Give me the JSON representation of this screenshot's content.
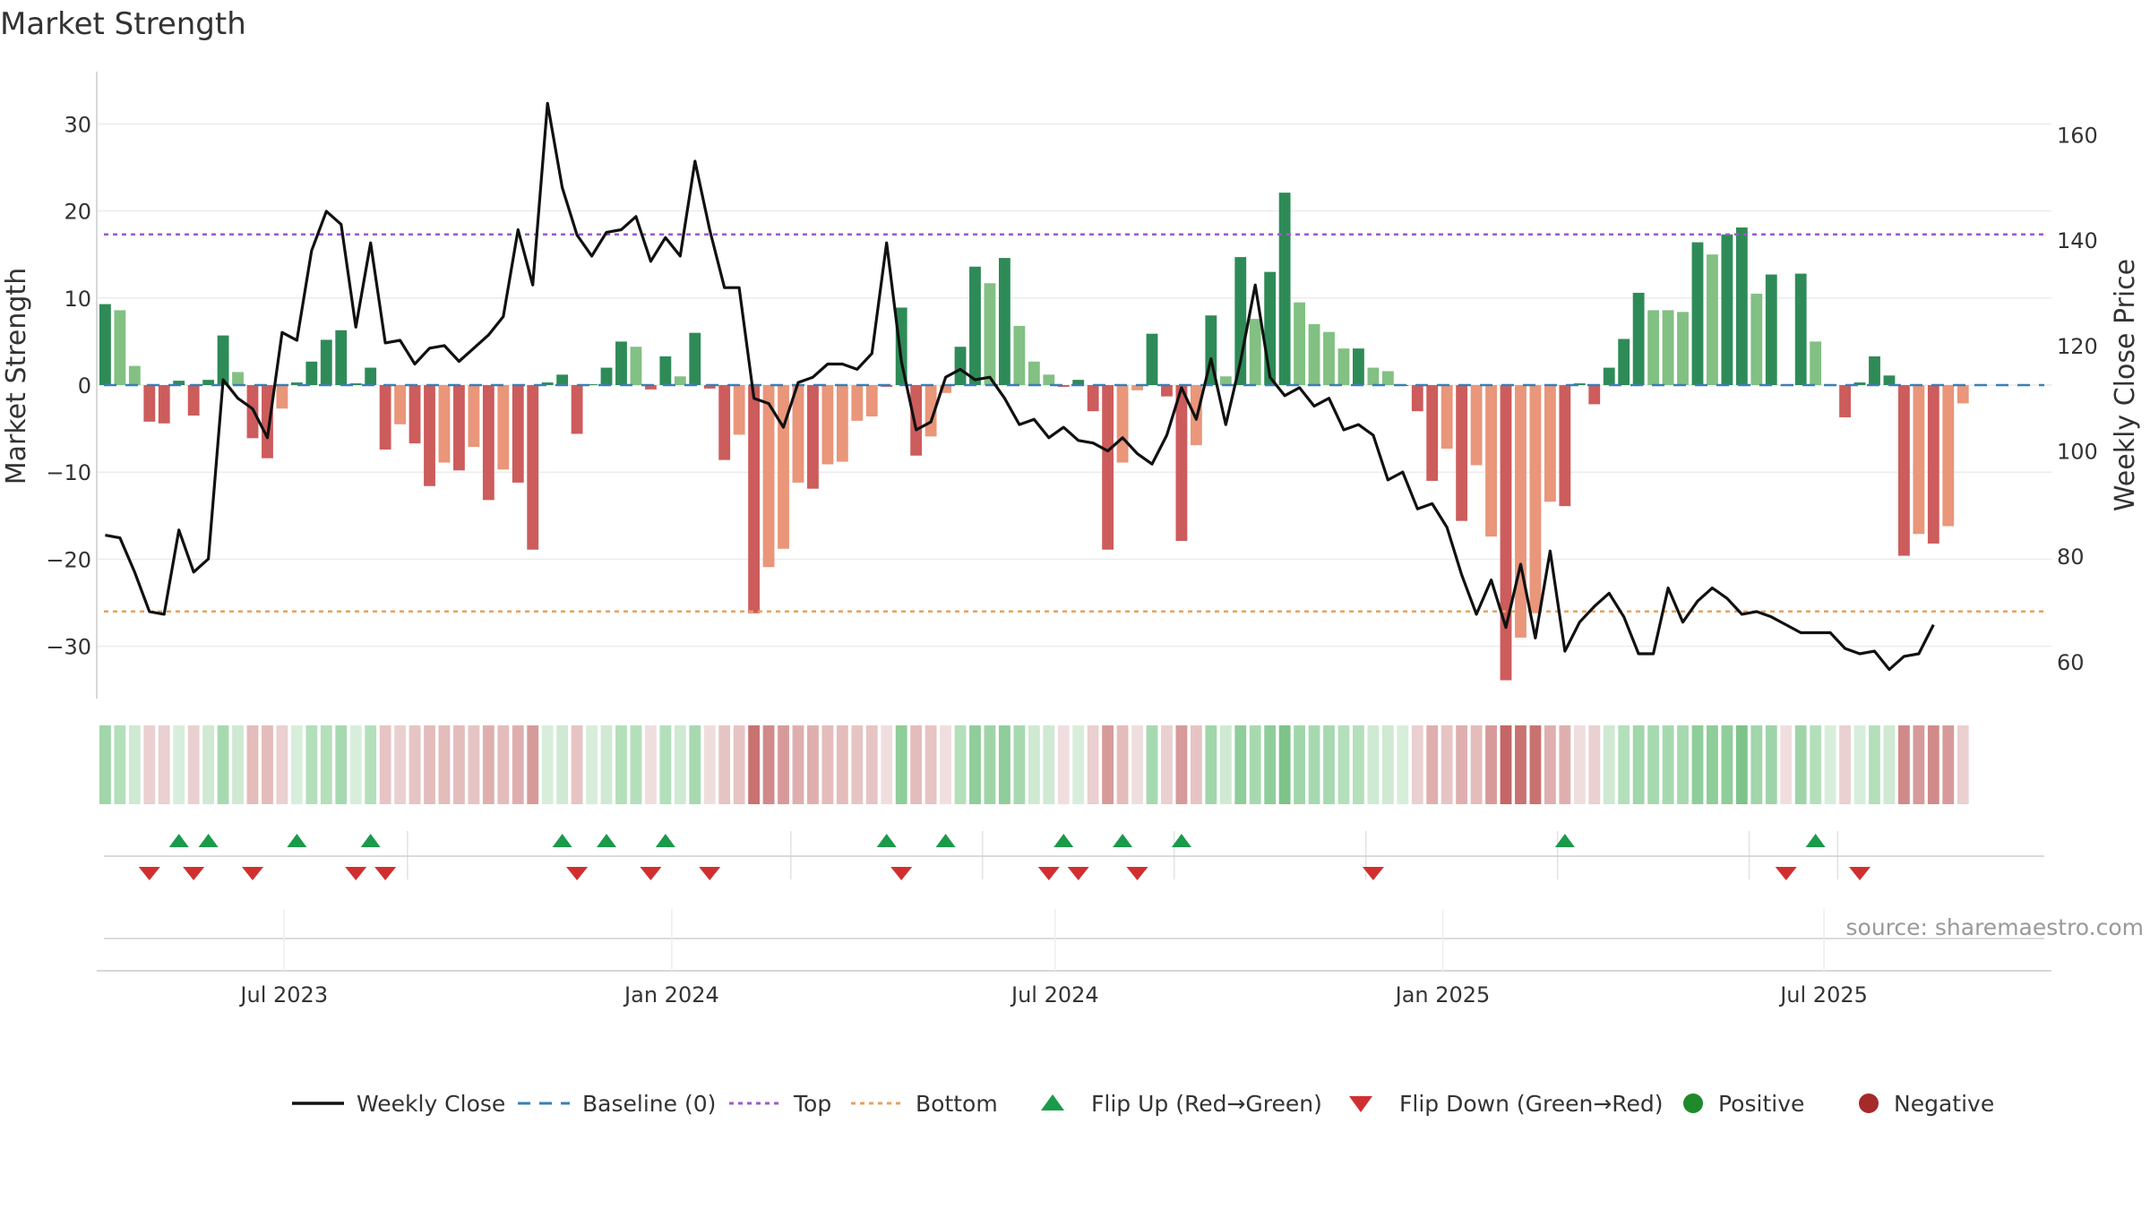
{
  "chart_data": {
    "type": "bar",
    "title": "Market Strength",
    "ylabel": "Market Strength",
    "y2label": "Weekly Close Price",
    "source": "source: sharemaestro.com",
    "ylim": [
      -36,
      36
    ],
    "y2lim": [
      53,
      172
    ],
    "yticks": [
      30,
      20,
      10,
      0,
      -10,
      -20,
      -30
    ],
    "y2ticks": [
      160,
      140,
      120,
      100,
      80,
      60
    ],
    "top_level": 17.3,
    "bottom_level": -26,
    "x_start": "2023-04-03",
    "x_end": "2025-10-17",
    "xticks": [
      {
        "label": "Jul 2023",
        "date": "2023-07-01"
      },
      {
        "label": "Jan 2024",
        "date": "2024-01-01"
      },
      {
        "label": "Jul 2024",
        "date": "2024-07-01"
      },
      {
        "label": "Jan 2025",
        "date": "2025-01-01"
      },
      {
        "label": "Jul 2025",
        "date": "2025-07-01"
      }
    ],
    "week_start": "2023-04-07",
    "strength": [
      9.3,
      8.6,
      2.2,
      -4.2,
      -4.4,
      0.5,
      -3.5,
      0.6,
      5.7,
      1.5,
      -6.1,
      -8.4,
      -2.7,
      0.3,
      2.7,
      5.2,
      6.3,
      0.2,
      2,
      -7.4,
      -4.5,
      -6.7,
      -11.6,
      -8.9,
      -9.8,
      -7.1,
      -13.2,
      -9.7,
      -11.2,
      -18.9,
      0.3,
      1.2,
      -5.6,
      0.1,
      2,
      5,
      4.4,
      -0.5,
      3.3,
      1,
      6,
      -0.4,
      -8.6,
      -5.7,
      -26.2,
      -20.9,
      -18.8,
      -11.2,
      -11.9,
      -9.1,
      -8.8,
      -4.1,
      -3.6,
      -0.2,
      8.9,
      -8.1,
      -5.9,
      -0.9,
      4.4,
      13.6,
      11.7,
      14.6,
      6.8,
      2.7,
      1.2,
      -0.2,
      0.6,
      -3,
      -18.9,
      -8.9,
      -0.6,
      5.9,
      -1.3,
      -17.9,
      -6.9,
      8,
      1,
      14.7,
      7.6,
      13,
      22.1,
      9.5,
      7,
      6.1,
      4.2,
      4.2,
      2,
      1.6,
      0,
      -3,
      -11,
      -7.3,
      -15.6,
      -9.2,
      -17.4,
      -33.9,
      -29,
      -26.2,
      -13.4,
      -13.9,
      0.2,
      -2.2,
      2,
      5.3,
      10.6,
      8.6,
      8.6,
      8.4,
      16.4,
      15,
      17.3,
      18.1,
      10.5,
      12.7,
      -0.1,
      12.8,
      5,
      0,
      -3.7,
      0.3,
      3.3,
      1.1,
      -19.6,
      -17.1,
      -18.2,
      -16.2,
      -2.1
    ],
    "strength_tone": [
      "d",
      "l",
      "l",
      "d",
      "d",
      "d",
      "d",
      "d",
      "d",
      "l",
      "d",
      "d",
      "l",
      "d",
      "d",
      "d",
      "d",
      "d",
      "d",
      "d",
      "l",
      "d",
      "d",
      "l",
      "d",
      "l",
      "d",
      "l",
      "d",
      "d",
      "d",
      "d",
      "d",
      "d",
      "d",
      "d",
      "l",
      "d",
      "d",
      "l",
      "d",
      "d",
      "d",
      "l",
      "d",
      "l",
      "l",
      "l",
      "d",
      "l",
      "l",
      "l",
      "l",
      "d",
      "d",
      "d",
      "l",
      "l",
      "d",
      "d",
      "l",
      "d",
      "l",
      "l",
      "l",
      "d",
      "d",
      "d",
      "d",
      "l",
      "l",
      "d",
      "d",
      "d",
      "l",
      "d",
      "l",
      "d",
      "l",
      "d",
      "d",
      "l",
      "l",
      "l",
      "l",
      "d",
      "l",
      "l",
      "d",
      "d",
      "d",
      "l",
      "d",
      "l",
      "l",
      "d",
      "l",
      "l",
      "l",
      "d",
      "d",
      "d",
      "d",
      "d",
      "d",
      "l",
      "l",
      "l",
      "d",
      "l",
      "d",
      "d",
      "l",
      "d",
      "d",
      "d",
      "l",
      "d",
      "d",
      "d",
      "d",
      "d",
      "d",
      "l",
      "d",
      "l",
      "l"
    ],
    "close": [
      84,
      83.5,
      77,
      69.5,
      69,
      85,
      77,
      79.5,
      113.5,
      110,
      108,
      102.5,
      122.5,
      121,
      138,
      145.5,
      143,
      123.5,
      139.5,
      120.5,
      121,
      116.5,
      119.5,
      120,
      117,
      119.5,
      122,
      125.5,
      142,
      131.5,
      166,
      150,
      141,
      137,
      141.5,
      142,
      144.5,
      136,
      140.5,
      137,
      155,
      142,
      131,
      131,
      110,
      109,
      104.5,
      113,
      114,
      116.5,
      116.5,
      115.5,
      118.5,
      139.5,
      117,
      104,
      105.5,
      114,
      115.5,
      113.5,
      114,
      110,
      105,
      106,
      102.5,
      104.5,
      102,
      101.5,
      100,
      102.5,
      99.5,
      97.5,
      103,
      112,
      106,
      117.5,
      105,
      117,
      131.5,
      114,
      110.5,
      112,
      108.5,
      110,
      104,
      105,
      103,
      94.5,
      96,
      89,
      90,
      85.5,
      76.5,
      69,
      75.5,
      66.5,
      78.5,
      64.5,
      81,
      62,
      67.5,
      70.5,
      73,
      68.5,
      61.5,
      61.5,
      74,
      67.5,
      71.5,
      74,
      72,
      69,
      69.5,
      68.5,
      67,
      65.5,
      65.5,
      65.5,
      62.5,
      61.5,
      62,
      58.5,
      61,
      61.5,
      67
    ]
  },
  "heat_strip": {
    "colors": [
      "#a0d6aa",
      "#b4dfbb",
      "#cfe9d3",
      "#ead0d0",
      "#ead0d0",
      "#d7eedb",
      "#ead0d0",
      "#cfe9d3",
      "#a7d9b0",
      "#cfe9d3",
      "#e4bcbc",
      "#e4bcbc",
      "#ead0d0",
      "#d7eedb",
      "#b4dfbb",
      "#b4dfbb",
      "#a7d9b0",
      "#d7eedb",
      "#b4dfbb",
      "#e6c4c4",
      "#ead0d0",
      "#e6c4c4",
      "#e4bcbc",
      "#e4bcbc",
      "#e4bcbc",
      "#e6c4c4",
      "#dfafaf",
      "#e4bcbc",
      "#dfafaf",
      "#d79a9a",
      "#d7eedb",
      "#cfe9d3",
      "#e6c4c4",
      "#d7eedb",
      "#cfe9d3",
      "#b4dfbb",
      "#b4dfbb",
      "#f0dede",
      "#b4dfbb",
      "#cfe9d3",
      "#a7d9b0",
      "#f0dede",
      "#e6c4c4",
      "#e6c4c4",
      "#c97272",
      "#d18a8a",
      "#d79a9a",
      "#dfafaf",
      "#dfafaf",
      "#e4bcbc",
      "#e4bcbc",
      "#e6c4c4",
      "#e6c4c4",
      "#f0dede",
      "#8fcd9a",
      "#e4bcbc",
      "#e6c4c4",
      "#f0dede",
      "#b4dfbb",
      "#8fcd9a",
      "#9fd4a9",
      "#8fcd9a",
      "#a7d9b0",
      "#cfe9d3",
      "#cfe9d3",
      "#f0dede",
      "#d7eedb",
      "#ead0d0",
      "#d79a9a",
      "#e4bcbc",
      "#f0dede",
      "#a7d9b0",
      "#ead0d0",
      "#d79a9a",
      "#e6c4c4",
      "#a0d6aa",
      "#cfe9d3",
      "#8fcd9a",
      "#a7d9b0",
      "#8fcd9a",
      "#7dc38a",
      "#a0d6aa",
      "#a7d9b0",
      "#a7d9b0",
      "#b4dfbb",
      "#b4dfbb",
      "#cfe9d3",
      "#cfe9d3",
      "#d7eedb",
      "#ead0d0",
      "#dfafaf",
      "#e6c4c4",
      "#dfafaf",
      "#e4bcbc",
      "#d79a9a",
      "#c46666",
      "#c97272",
      "#c97272",
      "#dfafaf",
      "#dfafaf",
      "#f0dede",
      "#ead0d0",
      "#cfe9d3",
      "#b4dfbb",
      "#a0d6aa",
      "#a7d9b0",
      "#a7d9b0",
      "#a7d9b0",
      "#8fcd9a",
      "#8fcd9a",
      "#8fcd9a",
      "#7dc38a",
      "#a0d6aa",
      "#9fd4a9",
      "#f0dede",
      "#9fd4a9",
      "#b4dfbb",
      "#d7eedb",
      "#ead0d0",
      "#d7eedb",
      "#b4dfbb",
      "#cfe9d3",
      "#d18a8a",
      "#d79a9a",
      "#d18a8a",
      "#d79a9a",
      "#ead0d0"
    ]
  },
  "flips": {
    "up": [
      5,
      7,
      13,
      18,
      31,
      34,
      38,
      53,
      57,
      65,
      69,
      73,
      99,
      116
    ],
    "down": [
      3,
      6,
      10,
      17,
      19,
      32,
      37,
      41,
      54,
      64,
      66,
      70,
      86,
      114,
      119
    ],
    "dividers": [
      21,
      47,
      60,
      73,
      86,
      99,
      112,
      118
    ]
  },
  "legend": [
    {
      "key": "weekly_close",
      "label": "Weekly Close",
      "kind": "line-solid",
      "color": "#111111"
    },
    {
      "key": "baseline",
      "label": "Baseline (0)",
      "kind": "line-dash",
      "color": "#3a7fb5"
    },
    {
      "key": "top",
      "label": "Top",
      "kind": "line-dot",
      "color": "#9b59d0"
    },
    {
      "key": "bottom",
      "label": "Bottom",
      "kind": "line-dot",
      "color": "#e8a15f"
    },
    {
      "key": "flip_up",
      "label": "Flip Up (Red→Green)",
      "kind": "tri-up",
      "color": "#1a9a4a"
    },
    {
      "key": "flip_down",
      "label": "Flip Down (Green→Red)",
      "kind": "tri-down",
      "color": "#d12f2f"
    },
    {
      "key": "positive",
      "label": "Positive",
      "kind": "dot",
      "color": "#1f8a2c"
    },
    {
      "key": "negative",
      "label": "Negative",
      "kind": "dot",
      "color": "#a52a2a"
    }
  ],
  "colors": {
    "pos_dark": "#2e8b57",
    "pos_light": "#82c083",
    "neg_dark": "#cd5c5c",
    "neg_light": "#e9967a",
    "grid": "#ececec",
    "axis": "#cccccc",
    "close_line": "#111111",
    "baseline": "#3a7fb5",
    "top_line": "#9b59d0",
    "bottom_line": "#e8a15f",
    "flip_up": "#1a9a4a",
    "flip_down": "#d12f2f"
  }
}
